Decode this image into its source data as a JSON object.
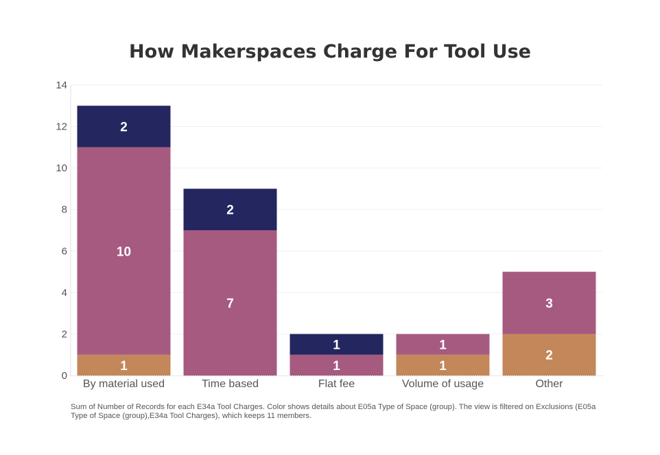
{
  "chart_data": {
    "type": "bar",
    "stacked": true,
    "title": "How Makerspaces Charge For Tool Use",
    "categories": [
      "By material used",
      "Time based",
      "Flat fee",
      "Volume of usage",
      "Other"
    ],
    "series": [
      {
        "color": "#c4875a",
        "values": [
          1,
          0,
          0,
          1,
          2
        ]
      },
      {
        "color": "#a65a80",
        "values": [
          10,
          7,
          1,
          1,
          3
        ]
      },
      {
        "color": "#24275f",
        "values": [
          2,
          2,
          1,
          0,
          0
        ]
      }
    ],
    "ylim": [
      0,
      14
    ],
    "yticks": [
      0,
      2,
      4,
      6,
      8,
      10,
      12,
      14
    ],
    "grid": true,
    "xlabel": "",
    "ylabel": ""
  },
  "caption": "Sum of Number of Records for each E34a Tool Charges.  Color shows details about E05a Type of Space (group). The view is filtered on Exclusions (E05a Type of Space (group),E34a Tool Charges), which keeps 11 members."
}
